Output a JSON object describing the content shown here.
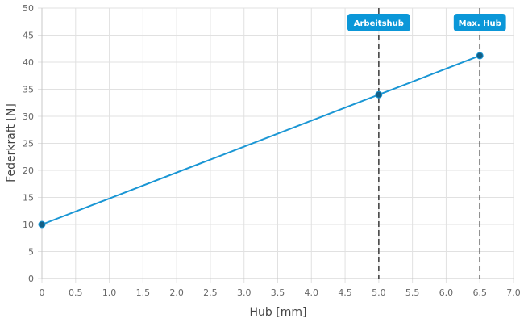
{
  "chart_data": {
    "type": "line",
    "xlabel": "Hub [mm]",
    "ylabel": "Federkraft [N]",
    "xlim": [
      0,
      7
    ],
    "ylim": [
      0,
      50
    ],
    "xticks": [
      "0",
      "0.5",
      "1.0",
      "1.5",
      "2.0",
      "2.5",
      "3.0",
      "3.5",
      "4.0",
      "4.5",
      "5.0",
      "5.5",
      "6.0",
      "6.5",
      "7.0"
    ],
    "yticks": [
      "0",
      "5",
      "10",
      "15",
      "20",
      "25",
      "30",
      "35",
      "40",
      "45",
      "50"
    ],
    "grid": true,
    "series": [
      {
        "color": "#1a96d4",
        "points": [
          {
            "x": 0,
            "y": 10
          },
          {
            "x": 5.0,
            "y": 34
          },
          {
            "x": 6.5,
            "y": 41.2
          }
        ]
      }
    ],
    "markers": [
      {
        "label": "Arbeitshub",
        "x": 5.0
      },
      {
        "label": "Max. Hub",
        "x": 6.5
      }
    ],
    "colors": {
      "line": "#1a96d4",
      "point": "#135f86",
      "label_bg": "#0b97d8",
      "dashed": "#444444",
      "grid": "#e1e1e1"
    }
  }
}
